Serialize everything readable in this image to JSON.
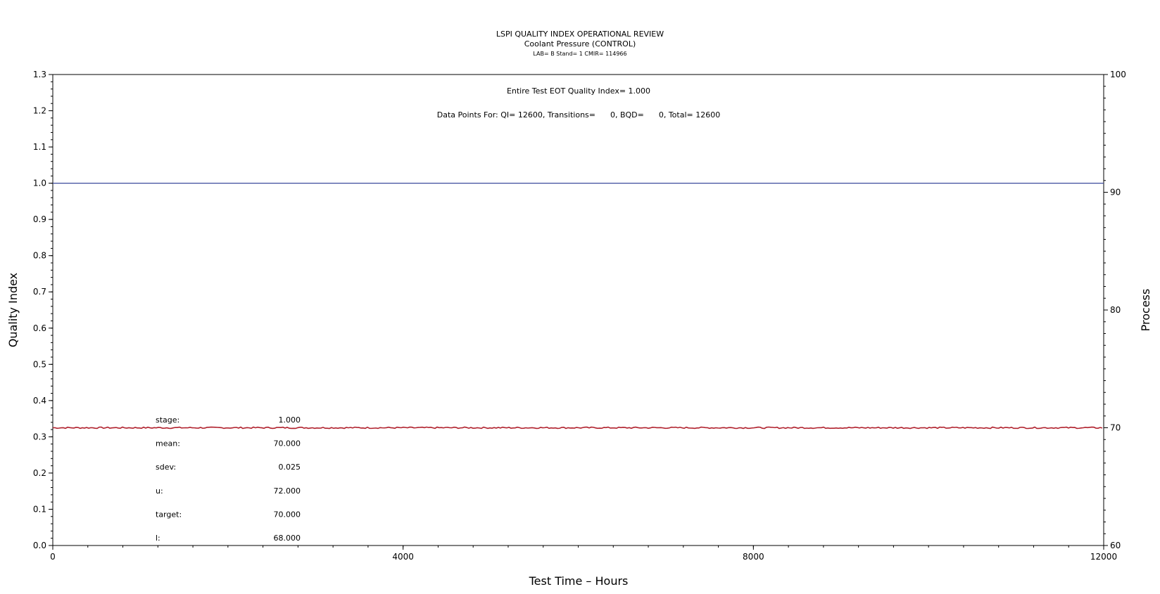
{
  "chart_data": {
    "type": "line",
    "title": "LSPI QUALITY INDEX OPERATIONAL REVIEW",
    "subtitle": "Coolant Pressure (CONTROL)",
    "subtitle2": "LAB= B Stand= 1 CMIR= 114966",
    "xlabel": "Test Time – Hours",
    "ylabel": "Quality Index",
    "y2label": "Process",
    "xlim": [
      0,
      12000
    ],
    "ylim": [
      0,
      1.3
    ],
    "y2lim": [
      60,
      100
    ],
    "x_ticks": [
      0,
      4000,
      8000,
      12000
    ],
    "y_ticks": [
      "0.0",
      "0.1",
      "0.2",
      "0.3",
      "0.4",
      "0.5",
      "0.6",
      "0.7",
      "0.8",
      "0.9",
      "1.0",
      "1.1",
      "1.2",
      "1.3"
    ],
    "y2_ticks": [
      60,
      70,
      80,
      90,
      100
    ],
    "grid": false,
    "series": [
      {
        "axis": "left",
        "color": "#3b4a9c",
        "x": [
          0,
          12000
        ],
        "y": [
          1.0,
          1.0
        ]
      },
      {
        "axis": "right",
        "color": "#b0202c",
        "x": [
          0,
          12000
        ],
        "y": [
          70.0,
          70.0
        ]
      }
    ],
    "annotations": {
      "eot_quality_index": "Entire Test EOT Quality Index=   1.000",
      "data_points": "Data Points For: QI= 12600, Transitions=      0, BQD=      0, Total= 12600"
    },
    "stats": [
      {
        "label": "stage:",
        "value": "1.000"
      },
      {
        "label": "mean:",
        "value": "70.000"
      },
      {
        "label": "sdev:",
        "value": "0.025"
      },
      {
        "label": "u:",
        "value": "72.000"
      },
      {
        "label": "target:",
        "value": "70.000"
      },
      {
        "label": "l:",
        "value": "68.000"
      }
    ]
  }
}
